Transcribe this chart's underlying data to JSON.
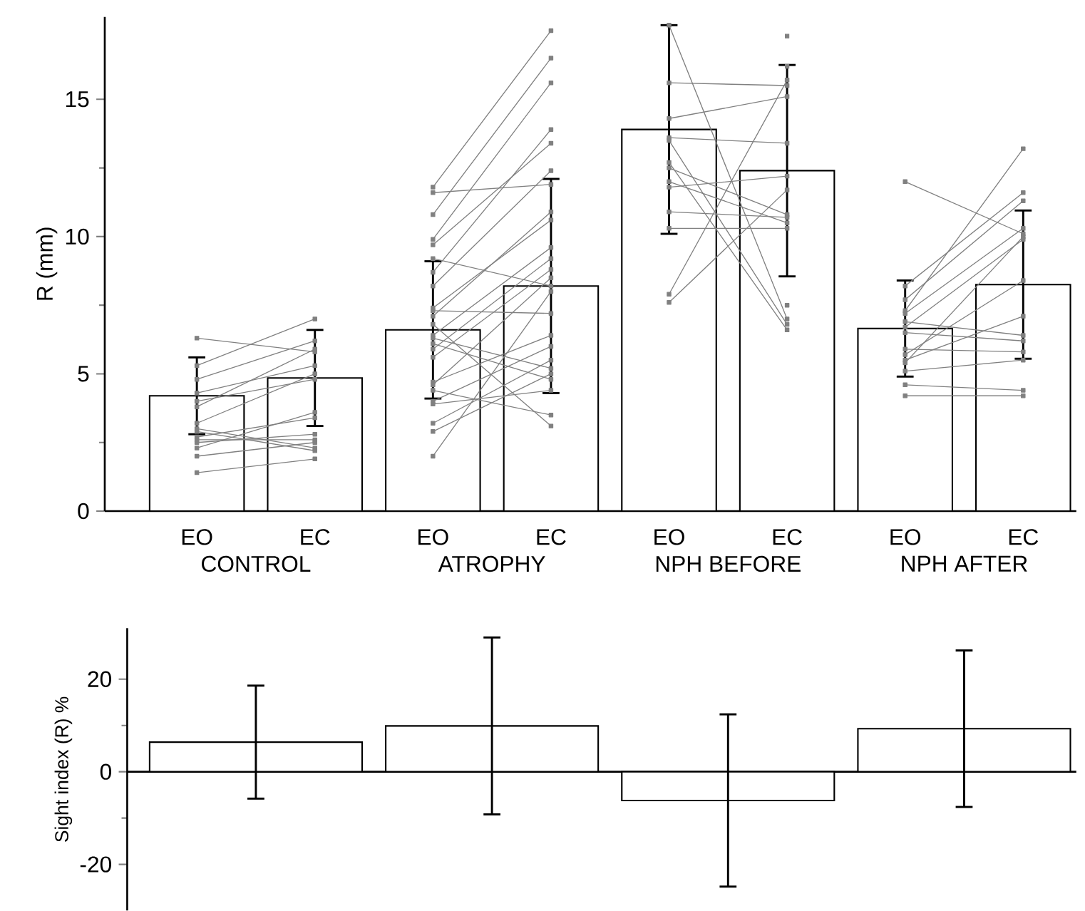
{
  "chart_data": [
    {
      "type": "bar",
      "ylabel": "R (mm)",
      "categories": [
        "EO",
        "EC",
        "EO",
        "EC",
        "EO",
        "EC",
        "EO",
        "EC"
      ],
      "ylim": [
        0,
        18
      ],
      "yticks": [
        0,
        5,
        10,
        15
      ],
      "annotations": [
        "CONTROL",
        "ATROPHY",
        "NPH BEFORE",
        "NPH AFTER"
      ],
      "series": [
        {
          "type": "bar",
          "color": "#ffffff",
          "values": [
            4.2,
            4.85,
            6.6,
            8.2,
            13.9,
            12.4,
            6.65,
            8.25
          ],
          "errors": [
            1.4,
            1.75,
            2.5,
            3.9,
            3.8,
            3.85,
            1.75,
            2.7
          ]
        },
        {
          "type": "line",
          "color": "#808080",
          "marker": "square",
          "values": [
            6.3,
            5.8,
            11.8,
            17.5,
            17.7,
            7.0,
            12.0,
            10.1
          ]
        },
        {
          "type": "line",
          "color": "#808080",
          "marker": "square",
          "values": [
            5.3,
            7.0,
            11.6,
            11.9,
            15.6,
            15.5,
            8.2,
            11.6
          ]
        },
        {
          "type": "line",
          "color": "#808080",
          "marker": "square",
          "values": [
            4.8,
            6.2,
            10.8,
            16.5,
            14.3,
            15.1,
            7.7,
            11.3
          ]
        },
        {
          "type": "line",
          "color": "#808080",
          "marker": "square",
          "values": [
            4.3,
            5.3,
            9.9,
            15.6,
            13.6,
            13.4,
            7.3,
            13.2
          ]
        },
        {
          "type": "line",
          "color": "#808080",
          "marker": "square",
          "values": [
            4.0,
            4.8,
            9.7,
            13.4,
            13.5,
            6.8,
            7.2,
            10.3
          ]
        },
        {
          "type": "line",
          "color": "#808080",
          "marker": "square",
          "values": [
            3.8,
            5.9,
            9.2,
            8.2,
            12.7,
            6.6,
            6.9,
            6.4
          ]
        },
        {
          "type": "line",
          "color": "#808080",
          "marker": "square",
          "values": [
            3.2,
            5.0,
            8.7,
            13.9,
            12.5,
            10.8,
            6.7,
            9.9
          ]
        },
        {
          "type": "line",
          "color": "#808080",
          "marker": "square",
          "values": [
            2.9,
            2.2,
            8.2,
            12.4,
            12.0,
            10.5,
            6.5,
            6.2
          ]
        },
        {
          "type": "line",
          "color": "#808080",
          "marker": "square",
          "values": [
            2.7,
            3.4,
            7.4,
            10.6,
            11.8,
            12.2,
            5.9,
            5.8
          ]
        },
        {
          "type": "line",
          "color": "#808080",
          "marker": "square",
          "values": [
            2.5,
            2.8,
            7.3,
            7.2,
            10.9,
            10.7,
            5.7,
            8.4
          ]
        },
        {
          "type": "line",
          "color": "#808080",
          "marker": "square",
          "values": [
            2.3,
            3.6,
            7.1,
            10.9,
            10.3,
            10.3,
            5.5,
            7.1
          ]
        },
        {
          "type": "line",
          "color": "#808080",
          "marker": "square",
          "values": [
            2.0,
            2.5,
            6.8,
            3.1,
            7.9,
            15.7,
            5.4,
            10.0
          ]
        },
        {
          "type": "line",
          "color": "#808080",
          "marker": "square",
          "values": [
            1.4,
            1.9,
            6.4,
            9.6,
            7.6,
            11.7,
            5.1,
            5.5
          ]
        },
        {
          "type": "line",
          "color": "#808080",
          "marker": "square",
          "values": [
            3.0,
            2.3,
            6.3,
            5.2,
            null,
            null,
            4.6,
            4.4
          ]
        },
        {
          "type": "line",
          "color": "#808080",
          "marker": "square",
          "values": [
            2.6,
            2.6,
            6.1,
            4.8,
            null,
            null,
            4.2,
            4.2
          ]
        },
        {
          "type": "scatter",
          "color": "#808080",
          "marker": "square",
          "values": [
            null,
            null,
            null,
            null,
            null,
            17.3,
            null,
            null
          ]
        },
        {
          "type": "scatter",
          "color": "#808080",
          "marker": "square",
          "values": [
            null,
            null,
            null,
            null,
            null,
            16.2,
            null,
            null
          ]
        },
        {
          "type": "line",
          "color": "#808080",
          "marker": "square",
          "values": [
            null,
            null,
            5.9,
            9.2,
            null,
            7.5,
            null,
            null
          ]
        },
        {
          "type": "line",
          "color": "#808080",
          "marker": "square",
          "values": [
            null,
            null,
            5.6,
            8.8,
            null,
            null,
            null,
            null
          ]
        },
        {
          "type": "line",
          "color": "#808080",
          "marker": "square",
          "values": [
            null,
            null,
            4.7,
            6.4,
            null,
            null,
            null,
            null
          ]
        },
        {
          "type": "line",
          "color": "#808080",
          "marker": "square",
          "values": [
            null,
            null,
            4.6,
            8.5,
            null,
            null,
            null,
            null
          ]
        },
        {
          "type": "line",
          "color": "#808080",
          "marker": "square",
          "values": [
            null,
            null,
            4.4,
            3.5,
            null,
            null,
            null,
            null
          ]
        },
        {
          "type": "line",
          "color": "#808080",
          "marker": "square",
          "values": [
            null,
            null,
            4.0,
            6.0,
            null,
            null,
            null,
            null
          ]
        },
        {
          "type": "line",
          "color": "#808080",
          "marker": "square",
          "values": [
            null,
            null,
            3.9,
            4.4,
            null,
            null,
            null,
            null
          ]
        },
        {
          "type": "line",
          "color": "#808080",
          "marker": "square",
          "values": [
            null,
            null,
            3.2,
            5.5,
            null,
            null,
            null,
            null
          ]
        },
        {
          "type": "line",
          "color": "#808080",
          "marker": "square",
          "values": [
            null,
            null,
            2.9,
            5.0,
            null,
            null,
            null,
            null
          ]
        },
        {
          "type": "line",
          "color": "#808080",
          "marker": "square",
          "values": [
            null,
            null,
            2.0,
            8.0,
            null,
            null,
            null,
            null
          ]
        }
      ]
    },
    {
      "type": "bar",
      "ylabel": "Sight index (R)  %",
      "categories": [
        null,
        null,
        null,
        null
      ],
      "values": [
        6.4,
        9.9,
        -6.2,
        9.3
      ],
      "errors": [
        12.2,
        19.1,
        18.6,
        16.9
      ],
      "color": "#ffffff",
      "ylim": [
        -30,
        31
      ],
      "yticks": [
        -20,
        0,
        20
      ],
      "tick_labels": "y"
    }
  ]
}
